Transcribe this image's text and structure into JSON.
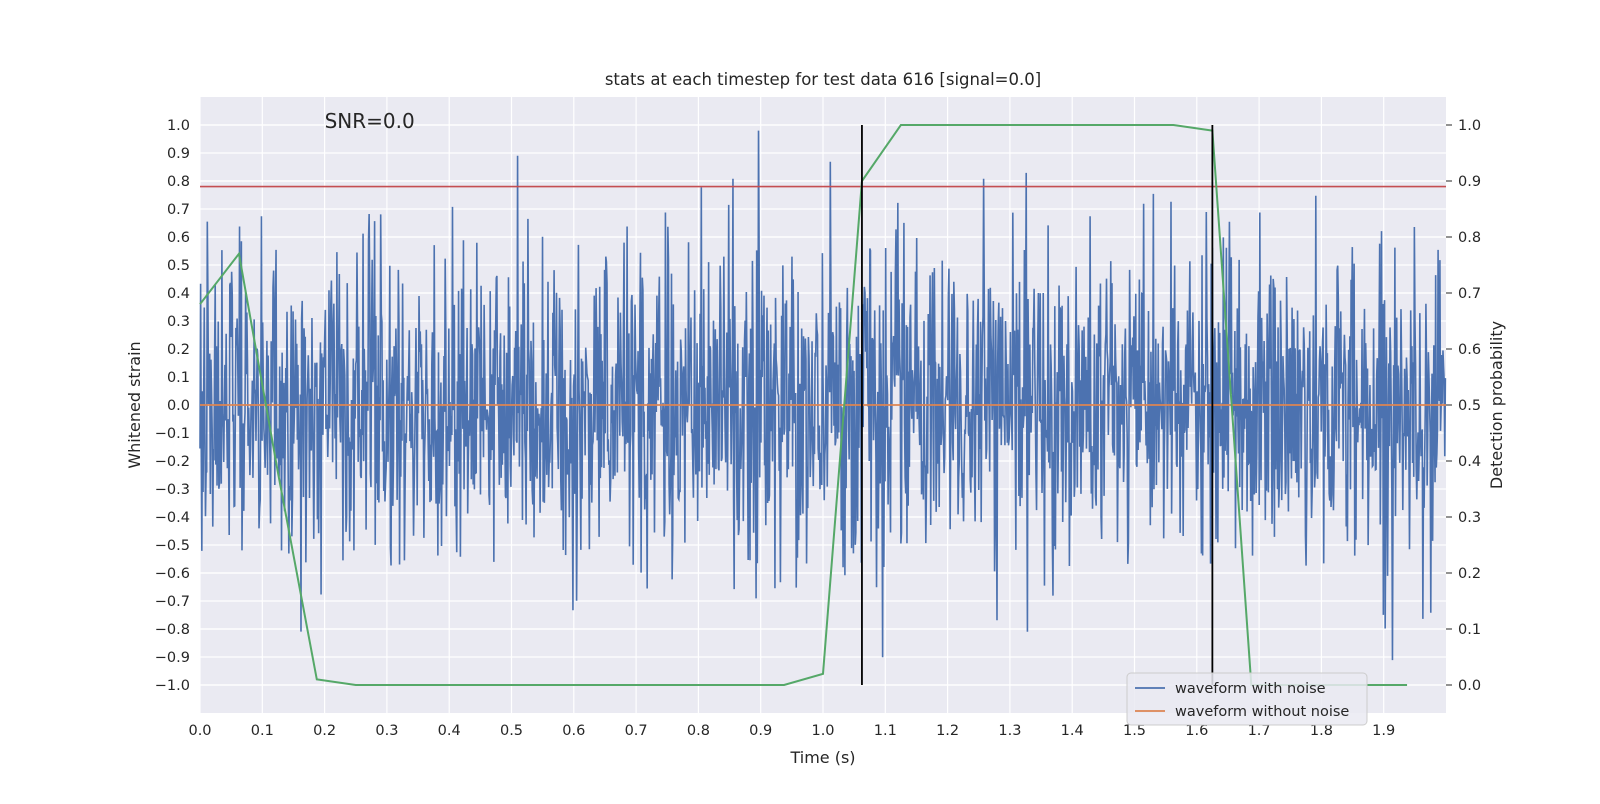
{
  "chart_data": {
    "type": "line",
    "title": "stats at each timestep for test data 616 [signal=0.0]",
    "annotation": "SNR=0.0",
    "xlabel": "Time (s)",
    "ylabel": "Whitened strain",
    "y2label": "Detection probability",
    "xlim": [
      0.0,
      2.0
    ],
    "ylim": [
      -1.1,
      1.1
    ],
    "y2lim": [
      -0.05,
      1.05
    ],
    "x_ticks": [
      "0.0",
      "0.1",
      "0.2",
      "0.3",
      "0.4",
      "0.5",
      "0.6",
      "0.7",
      "0.8",
      "0.9",
      "1.0",
      "1.1",
      "1.2",
      "1.3",
      "1.4",
      "1.5",
      "1.6",
      "1.7",
      "1.8",
      "1.9"
    ],
    "y_ticks": [
      "1.0",
      "0.9",
      "0.8",
      "0.7",
      "0.6",
      "0.5",
      "0.4",
      "0.3",
      "0.2",
      "0.1",
      "0.0",
      "−0.1",
      "−0.2",
      "−0.3",
      "−0.4",
      "−0.5",
      "−0.6",
      "−0.7",
      "−0.8",
      "−0.9",
      "−1.0"
    ],
    "y2_ticks": [
      "1.0",
      "0.9",
      "0.8",
      "0.7",
      "0.6",
      "0.5",
      "0.4",
      "0.3",
      "0.2",
      "0.1",
      "0.0"
    ],
    "grid": true,
    "legend_position": "lower-right",
    "colors": {
      "noise": "#4c72b0",
      "clean": "#dd8452",
      "probability": "#55a868",
      "threshold": "#c44e52",
      "markers": "#000000",
      "plot_bg": "#eaeaf2",
      "grid": "#ffffff"
    },
    "series": [
      {
        "name": "waveform with noise",
        "axis": "left",
        "note_values": "dense noise, amplitude within about ±1.0",
        "seed": 616
      },
      {
        "name": "waveform without noise",
        "axis": "left",
        "x": [
          0.0,
          2.0
        ],
        "y": [
          0.0,
          0.0
        ]
      },
      {
        "axis": "right",
        "x": [
          0.0,
          0.0625,
          0.125,
          0.1875,
          0.25,
          0.3125,
          0.375,
          0.4375,
          0.5,
          0.5625,
          0.625,
          0.6875,
          0.75,
          0.8125,
          0.875,
          0.9375,
          1.0,
          1.0625,
          1.125,
          1.1875,
          1.25,
          1.3125,
          1.375,
          1.4375,
          1.5,
          1.5625,
          1.625,
          1.6875,
          1.75,
          1.8125,
          1.875,
          1.9375
        ],
        "y": [
          0.68,
          0.77,
          0.38,
          0.01,
          0.0,
          0.0,
          0.0,
          0.0,
          0.0,
          0.0,
          0.0,
          0.0,
          0.0,
          0.0,
          0.0,
          0.0,
          0.02,
          0.9,
          1.0,
          1.0,
          1.0,
          1.0,
          1.0,
          1.0,
          1.0,
          1.0,
          0.99,
          0.0,
          0.0,
          0.0,
          0.0,
          0.0
        ]
      },
      {
        "axis": "left",
        "kind": "hline",
        "y": 0.78
      },
      {
        "axis": "right",
        "kind": "vline",
        "x": 1.0625,
        "y": [
          0.0,
          1.0
        ]
      },
      {
        "axis": "right",
        "kind": "vline",
        "x": 1.625,
        "y": [
          0.0,
          1.0
        ]
      }
    ],
    "legend": [
      "waveform with noise",
      "waveform without noise"
    ]
  }
}
